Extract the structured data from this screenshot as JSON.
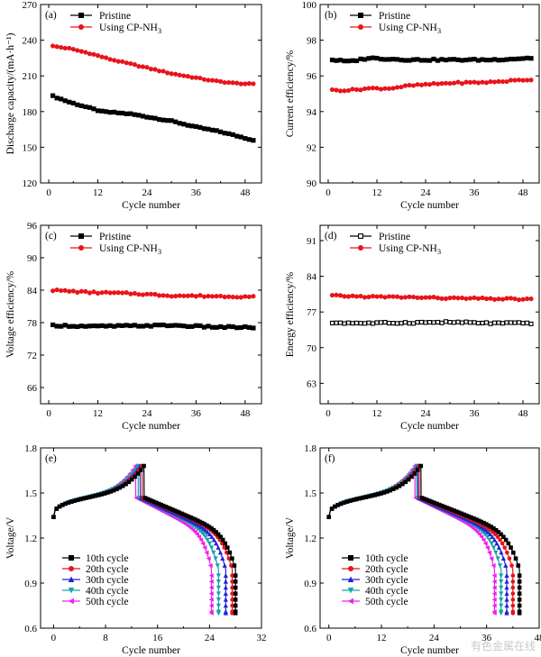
{
  "chart_data": [
    {
      "panel": "(a)",
      "type": "line",
      "xlabel": "Cycle number",
      "ylabel": "Discharge capacity/(mA·h⁻¹)",
      "xlim": [
        -2,
        52
      ],
      "xticks": [
        0,
        12,
        24,
        36,
        48
      ],
      "ylim": [
        120,
        270
      ],
      "yticks": [
        120,
        150,
        180,
        210,
        240,
        270
      ],
      "legend": "top-left",
      "series": [
        {
          "name": "Pristine",
          "color": "#000000",
          "marker": "square",
          "line": "flat",
          "x_start": 1,
          "x_end": 50,
          "points": [
            [
              1,
              193
            ],
            [
              5,
              188
            ],
            [
              10,
              183
            ],
            [
              13,
              180
            ],
            [
              20,
              178
            ],
            [
              25,
              175
            ],
            [
              30,
              172
            ],
            [
              36,
              167
            ],
            [
              42,
              163
            ],
            [
              50,
              156
            ]
          ]
        },
        {
          "name": "Using CP-NH3",
          "color": "#e8141c",
          "marker": "circle",
          "line": "curve",
          "x_start": 1,
          "x_end": 50,
          "points": [
            [
              1,
              235
            ],
            [
              5,
              233
            ],
            [
              10,
              229
            ],
            [
              15,
              224
            ],
            [
              20,
              220
            ],
            [
              25,
              216
            ],
            [
              30,
              212
            ],
            [
              35,
              209
            ],
            [
              40,
              206
            ],
            [
              45,
              204
            ],
            [
              50,
              203
            ]
          ]
        }
      ]
    },
    {
      "panel": "(b)",
      "type": "line",
      "xlabel": "Cycle number",
      "ylabel": "Current efficiency/%",
      "xlim": [
        -2,
        52
      ],
      "xticks": [
        0,
        12,
        24,
        36,
        48
      ],
      "ylim": [
        90,
        100
      ],
      "yticks": [
        90,
        92,
        94,
        96,
        98,
        100
      ],
      "legend": "top-left",
      "series": [
        {
          "name": "Pristine",
          "color": "#000000",
          "marker": "square",
          "line": "flat",
          "x_start": 1,
          "x_end": 50,
          "points": [
            [
              1,
              96.9
            ],
            [
              5,
              96.8
            ],
            [
              10,
              97.0
            ],
            [
              20,
              96.9
            ],
            [
              30,
              96.9
            ],
            [
              40,
              96.9
            ],
            [
              50,
              97.0
            ]
          ]
        },
        {
          "name": "Using CP-NH3",
          "color": "#e8141c",
          "marker": "circle",
          "line": "curve",
          "x_start": 1,
          "x_end": 50,
          "points": [
            [
              1,
              95.2
            ],
            [
              5,
              95.2
            ],
            [
              10,
              95.3
            ],
            [
              15,
              95.3
            ],
            [
              20,
              95.45
            ],
            [
              30,
              95.6
            ],
            [
              40,
              95.65
            ],
            [
              50,
              95.8
            ]
          ]
        }
      ]
    },
    {
      "panel": "(c)",
      "type": "line",
      "xlabel": "Cycle number",
      "ylabel": "Voltage efficiency/%",
      "xlim": [
        -2,
        52
      ],
      "xticks": [
        0,
        12,
        24,
        36,
        48
      ],
      "ylim": [
        63,
        96
      ],
      "yticks": [
        66,
        72,
        78,
        84,
        90,
        96
      ],
      "legend": "top-left",
      "series": [
        {
          "name": "Pristine",
          "color": "#000000",
          "marker": "square",
          "line": "flat",
          "x_start": 1,
          "x_end": 50,
          "points": [
            [
              1,
              77.5
            ],
            [
              10,
              77.3
            ],
            [
              20,
              77.4
            ],
            [
              30,
              77.5
            ],
            [
              40,
              77.2
            ],
            [
              50,
              77.1
            ]
          ]
        },
        {
          "name": "Using CP-NH3",
          "color": "#e8141c",
          "marker": "circle",
          "line": "curve",
          "x_start": 1,
          "x_end": 50,
          "points": [
            [
              1,
              84.0
            ],
            [
              10,
              83.6
            ],
            [
              20,
              83.4
            ],
            [
              30,
              83.0
            ],
            [
              40,
              82.9
            ],
            [
              50,
              82.8
            ]
          ]
        }
      ]
    },
    {
      "panel": "(d)",
      "type": "line",
      "xlabel": "Cycle number",
      "ylabel": "Energy efficiency/%",
      "xlim": [
        -2,
        52
      ],
      "xticks": [
        0,
        12,
        24,
        36,
        48
      ],
      "ylim": [
        59,
        94
      ],
      "yticks": [
        63,
        70,
        77,
        84,
        91
      ],
      "legend": "top-left",
      "series": [
        {
          "name": "Pristine",
          "color": "#000000",
          "marker": "square-open",
          "line": "flat",
          "x_start": 1,
          "x_end": 50,
          "points": [
            [
              1,
              74.9
            ],
            [
              10,
              74.8
            ],
            [
              20,
              74.9
            ],
            [
              30,
              75.0
            ],
            [
              40,
              74.8
            ],
            [
              50,
              74.8
            ]
          ]
        },
        {
          "name": "Using CP-NH3",
          "color": "#e8141c",
          "marker": "circle",
          "line": "curve",
          "x_start": 1,
          "x_end": 50,
          "points": [
            [
              1,
              80.2
            ],
            [
              10,
              80.0
            ],
            [
              20,
              79.9
            ],
            [
              30,
              79.7
            ],
            [
              40,
              79.6
            ],
            [
              50,
              79.5
            ]
          ]
        }
      ]
    },
    {
      "panel": "(e)",
      "type": "line",
      "xlabel": "Cycle number",
      "ylabel": "Voltage/V",
      "xlim": [
        -2,
        32
      ],
      "xticks": [
        0,
        8,
        16,
        24,
        32
      ],
      "ylim": [
        0.6,
        1.8
      ],
      "yticks": [
        0.6,
        0.9,
        1.2,
        1.5,
        1.8
      ],
      "legend": "bottom-left",
      "series": [
        {
          "name": "10th cycle",
          "color": "#000000",
          "marker": "square",
          "charge_end": 13.9,
          "discharge_end": 28.0
        },
        {
          "name": "20th cycle",
          "color": "#e8141c",
          "marker": "circle",
          "charge_end": 13.6,
          "discharge_end": 27.5
        },
        {
          "name": "30th cycle",
          "color": "#1f24d8",
          "marker": "triangle-up",
          "charge_end": 13.3,
          "discharge_end": 26.5
        },
        {
          "name": "40th cycle",
          "color": "#14a6a6",
          "marker": "triangle-down",
          "charge_end": 13.0,
          "discharge_end": 25.4
        },
        {
          "name": "50th cycle",
          "color": "#ee22ee",
          "marker": "triangle-left",
          "charge_end": 12.6,
          "discharge_end": 24.3
        }
      ]
    },
    {
      "panel": "(f)",
      "type": "line",
      "xlabel": "Cycle number",
      "ylabel": "Voltage/V",
      "xlim": [
        -2,
        48
      ],
      "xticks": [
        0,
        12,
        24,
        36,
        48
      ],
      "ylim": [
        0.6,
        1.8
      ],
      "yticks": [
        0.6,
        0.9,
        1.2,
        1.5,
        1.8
      ],
      "legend": "bottom-left",
      "series": [
        {
          "name": "10th cycle",
          "color": "#000000",
          "marker": "square",
          "charge_end": 21.0,
          "discharge_end": 43.5
        },
        {
          "name": "20th cycle",
          "color": "#e8141c",
          "marker": "circle",
          "charge_end": 20.6,
          "discharge_end": 42.0
        },
        {
          "name": "30th cycle",
          "color": "#1f24d8",
          "marker": "triangle-up",
          "charge_end": 20.3,
          "discharge_end": 40.6
        },
        {
          "name": "40th cycle",
          "color": "#14a6a6",
          "marker": "triangle-down",
          "charge_end": 20.0,
          "discharge_end": 39.3
        },
        {
          "name": "50th cycle",
          "color": "#ee22ee",
          "marker": "triangle-left",
          "charge_end": 19.6,
          "discharge_end": 37.8
        }
      ]
    }
  ],
  "watermark": "有色金属在线"
}
